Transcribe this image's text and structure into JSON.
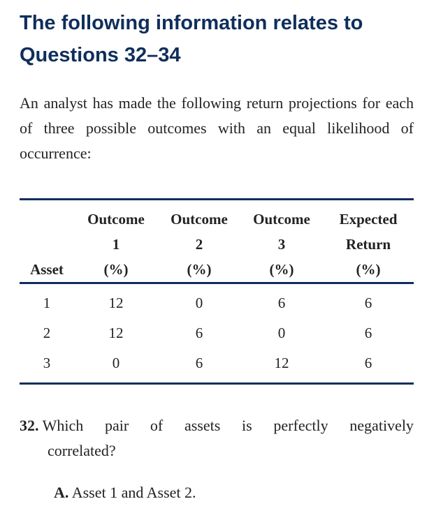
{
  "heading": {
    "line1": "The following information relates to",
    "line2": "Questions 32–34"
  },
  "intro": "An analyst has made the following return projections for each of three possible outcomes with an equal likelihood of occurrence:",
  "table": {
    "headers": [
      [
        "",
        "",
        "Asset"
      ],
      [
        "Outcome",
        "1",
        "(%)"
      ],
      [
        "Outcome",
        "2",
        "(%)"
      ],
      [
        "Outcome",
        "3",
        "(%)"
      ],
      [
        "Expected",
        "Return",
        "(%)"
      ]
    ],
    "rows": [
      [
        "1",
        "12",
        "0",
        "6",
        "6"
      ],
      [
        "2",
        "12",
        "6",
        "0",
        "6"
      ],
      [
        "3",
        "0",
        "6",
        "12",
        "6"
      ]
    ]
  },
  "question": {
    "number": "32.",
    "words": [
      "Which",
      "pair",
      "of",
      "assets",
      "is",
      "perfectly",
      "negatively"
    ],
    "line2": "correlated?"
  },
  "option_a": {
    "letter": "A.",
    "text": "Asset 1 and Asset 2."
  }
}
